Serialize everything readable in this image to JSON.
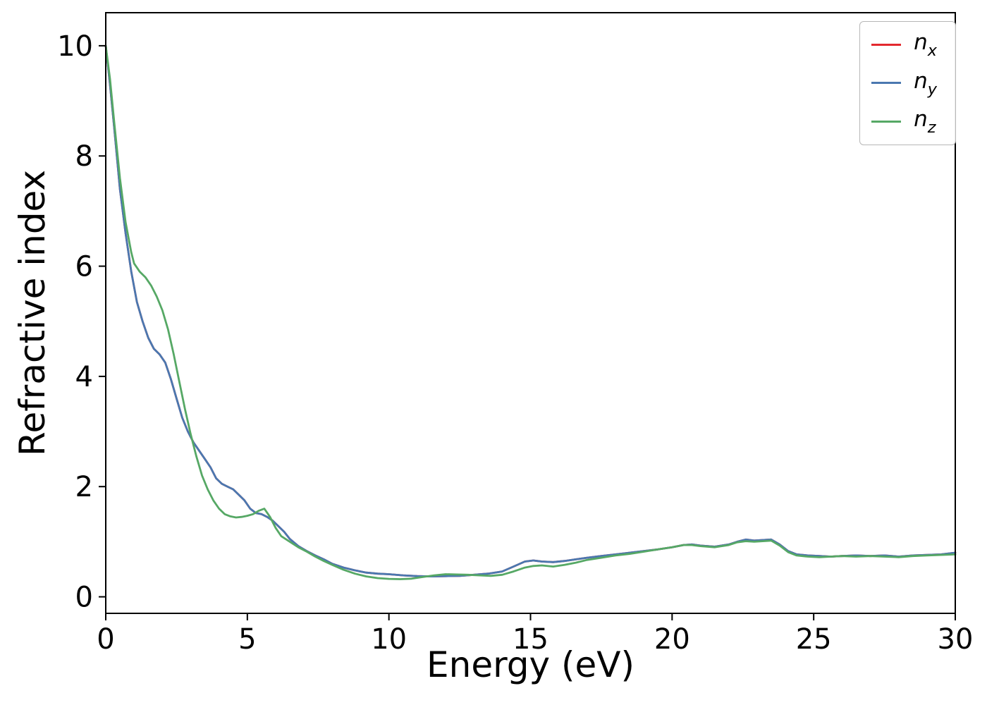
{
  "chart_data": {
    "type": "line",
    "title": "",
    "xlabel": "Energy (eV)",
    "ylabel": "Refractive index",
    "xlim": [
      0,
      30
    ],
    "ylim": [
      -0.3,
      10.6
    ],
    "xticks": [
      0,
      5,
      10,
      15,
      20,
      25,
      30
    ],
    "yticks": [
      0,
      2,
      4,
      6,
      8,
      10
    ],
    "grid": false,
    "legend_position": "upper right",
    "series": [
      {
        "name": "nx",
        "label_main": "n",
        "label_sub": "x",
        "color": "#e3292e",
        "x": [
          0,
          0.15,
          0.3,
          0.5,
          0.7,
          0.9,
          1.1,
          1.3,
          1.5,
          1.7,
          1.9,
          2.1,
          2.3,
          2.5,
          2.7,
          2.9,
          3.1,
          3.3,
          3.5,
          3.7,
          3.9,
          4.1,
          4.3,
          4.5,
          4.7,
          4.9,
          5.1,
          5.3,
          5.5,
          5.7,
          5.9,
          6.1,
          6.3,
          6.5,
          6.8,
          7.1,
          7.4,
          7.7,
          8.0,
          8.4,
          8.8,
          9.2,
          9.6,
          10.0,
          10.5,
          11.0,
          11.5,
          12.0,
          12.5,
          13.0,
          13.5,
          14.0,
          14.4,
          14.8,
          15.1,
          15.4,
          15.8,
          16.2,
          16.6,
          17.0,
          17.5,
          18.0,
          18.5,
          19.0,
          19.5,
          20.0,
          20.4,
          20.7,
          21.0,
          21.5,
          22.0,
          22.3,
          22.6,
          22.9,
          23.2,
          23.5,
          23.8,
          24.1,
          24.4,
          24.8,
          25.2,
          25.6,
          26.0,
          26.5,
          27.0,
          27.5,
          28.0,
          28.5,
          29.0,
          29.5,
          30.0
        ],
        "y": [
          10.0,
          9.3,
          8.5,
          7.4,
          6.6,
          5.9,
          5.35,
          5.0,
          4.7,
          4.5,
          4.4,
          4.25,
          3.95,
          3.6,
          3.25,
          3.0,
          2.8,
          2.65,
          2.5,
          2.35,
          2.15,
          2.05,
          2.0,
          1.95,
          1.85,
          1.75,
          1.6,
          1.52,
          1.5,
          1.45,
          1.38,
          1.28,
          1.18,
          1.05,
          0.92,
          0.83,
          0.75,
          0.68,
          0.6,
          0.53,
          0.48,
          0.44,
          0.42,
          0.41,
          0.39,
          0.375,
          0.37,
          0.375,
          0.38,
          0.4,
          0.42,
          0.46,
          0.55,
          0.64,
          0.66,
          0.64,
          0.63,
          0.65,
          0.68,
          0.71,
          0.74,
          0.77,
          0.8,
          0.83,
          0.86,
          0.9,
          0.94,
          0.95,
          0.93,
          0.91,
          0.95,
          1.0,
          1.04,
          1.02,
          1.03,
          1.04,
          0.95,
          0.83,
          0.77,
          0.75,
          0.74,
          0.73,
          0.74,
          0.75,
          0.74,
          0.75,
          0.73,
          0.75,
          0.76,
          0.77,
          0.8
        ]
      },
      {
        "name": "ny",
        "label_main": "n",
        "label_sub": "y",
        "color": "#4a78b0",
        "x": [
          0,
          0.15,
          0.3,
          0.5,
          0.7,
          0.9,
          1.1,
          1.3,
          1.5,
          1.7,
          1.9,
          2.1,
          2.3,
          2.5,
          2.7,
          2.9,
          3.1,
          3.3,
          3.5,
          3.7,
          3.9,
          4.1,
          4.3,
          4.5,
          4.7,
          4.9,
          5.1,
          5.3,
          5.5,
          5.7,
          5.9,
          6.1,
          6.3,
          6.5,
          6.8,
          7.1,
          7.4,
          7.7,
          8.0,
          8.4,
          8.8,
          9.2,
          9.6,
          10.0,
          10.5,
          11.0,
          11.5,
          12.0,
          12.5,
          13.0,
          13.5,
          14.0,
          14.4,
          14.8,
          15.1,
          15.4,
          15.8,
          16.2,
          16.6,
          17.0,
          17.5,
          18.0,
          18.5,
          19.0,
          19.5,
          20.0,
          20.4,
          20.7,
          21.0,
          21.5,
          22.0,
          22.3,
          22.6,
          22.9,
          23.2,
          23.5,
          23.8,
          24.1,
          24.4,
          24.8,
          25.2,
          25.6,
          26.0,
          26.5,
          27.0,
          27.5,
          28.0,
          28.5,
          29.0,
          29.5,
          30.0
        ],
        "y": [
          10.0,
          9.3,
          8.5,
          7.4,
          6.6,
          5.9,
          5.35,
          5.0,
          4.7,
          4.5,
          4.4,
          4.25,
          3.95,
          3.6,
          3.25,
          3.0,
          2.8,
          2.65,
          2.5,
          2.35,
          2.15,
          2.05,
          2.0,
          1.95,
          1.85,
          1.75,
          1.6,
          1.52,
          1.5,
          1.45,
          1.38,
          1.28,
          1.18,
          1.05,
          0.92,
          0.83,
          0.75,
          0.68,
          0.6,
          0.53,
          0.48,
          0.44,
          0.42,
          0.41,
          0.39,
          0.375,
          0.37,
          0.375,
          0.38,
          0.4,
          0.42,
          0.46,
          0.55,
          0.64,
          0.66,
          0.64,
          0.63,
          0.65,
          0.68,
          0.71,
          0.74,
          0.77,
          0.8,
          0.83,
          0.86,
          0.9,
          0.94,
          0.95,
          0.93,
          0.91,
          0.95,
          1.0,
          1.04,
          1.02,
          1.03,
          1.04,
          0.95,
          0.83,
          0.77,
          0.75,
          0.74,
          0.73,
          0.74,
          0.75,
          0.74,
          0.75,
          0.73,
          0.75,
          0.76,
          0.77,
          0.8
        ]
      },
      {
        "name": "nz",
        "label_main": "n",
        "label_sub": "z",
        "color": "#56a865",
        "x": [
          0,
          0.15,
          0.3,
          0.5,
          0.7,
          0.9,
          1.0,
          1.2,
          1.4,
          1.6,
          1.8,
          2.0,
          2.2,
          2.4,
          2.6,
          2.8,
          3.0,
          3.2,
          3.4,
          3.6,
          3.8,
          4.0,
          4.2,
          4.4,
          4.6,
          4.8,
          5.0,
          5.2,
          5.4,
          5.6,
          5.8,
          6.0,
          6.2,
          6.5,
          6.8,
          7.1,
          7.4,
          7.7,
          8.0,
          8.4,
          8.8,
          9.2,
          9.6,
          10.0,
          10.4,
          10.8,
          11.2,
          11.6,
          12.0,
          12.4,
          12.8,
          13.2,
          13.6,
          14.0,
          14.4,
          14.8,
          15.1,
          15.4,
          15.8,
          16.2,
          16.6,
          17.0,
          17.5,
          18.0,
          18.5,
          19.0,
          19.5,
          20.0,
          20.4,
          20.7,
          21.0,
          21.5,
          22.0,
          22.3,
          22.6,
          22.9,
          23.2,
          23.5,
          23.8,
          24.1,
          24.4,
          24.8,
          25.2,
          25.6,
          26.0,
          26.5,
          27.0,
          27.5,
          28.0,
          28.5,
          29.0,
          29.5,
          30.0
        ],
        "y": [
          10.0,
          9.4,
          8.6,
          7.6,
          6.8,
          6.25,
          6.05,
          5.9,
          5.8,
          5.65,
          5.45,
          5.2,
          4.85,
          4.4,
          3.9,
          3.4,
          2.95,
          2.55,
          2.2,
          1.95,
          1.75,
          1.6,
          1.5,
          1.46,
          1.44,
          1.45,
          1.47,
          1.5,
          1.56,
          1.6,
          1.45,
          1.25,
          1.1,
          1.0,
          0.9,
          0.82,
          0.73,
          0.65,
          0.58,
          0.49,
          0.42,
          0.37,
          0.34,
          0.325,
          0.32,
          0.33,
          0.36,
          0.39,
          0.41,
          0.405,
          0.4,
          0.39,
          0.38,
          0.4,
          0.46,
          0.53,
          0.56,
          0.57,
          0.55,
          0.58,
          0.62,
          0.67,
          0.71,
          0.75,
          0.78,
          0.82,
          0.86,
          0.9,
          0.94,
          0.94,
          0.92,
          0.9,
          0.94,
          0.99,
          1.01,
          1.0,
          1.01,
          1.02,
          0.93,
          0.81,
          0.75,
          0.73,
          0.72,
          0.73,
          0.74,
          0.73,
          0.74,
          0.73,
          0.72,
          0.74,
          0.75,
          0.76,
          0.77
        ]
      }
    ]
  }
}
